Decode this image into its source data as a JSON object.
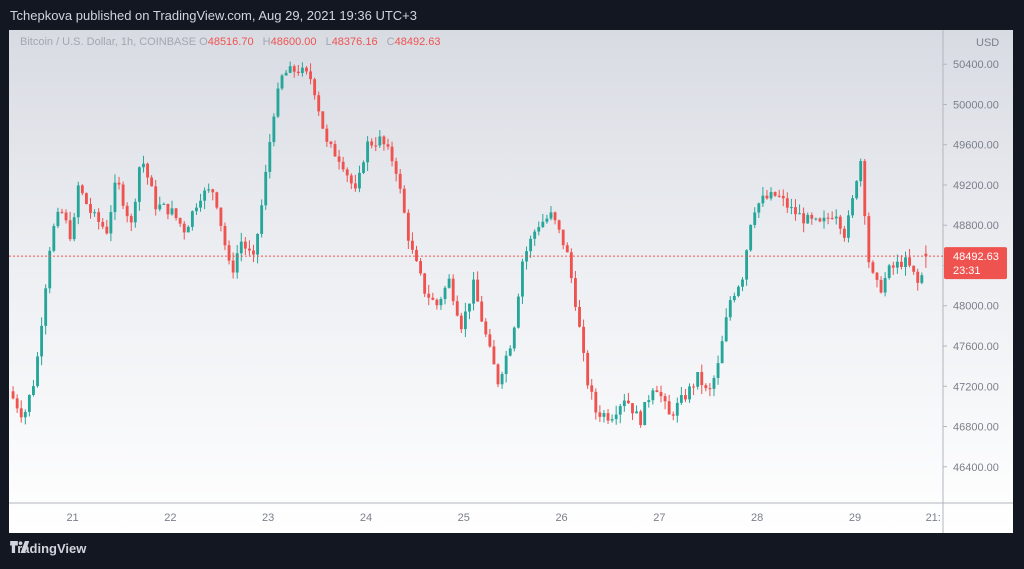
{
  "header": {
    "title": "Tchepkova published on TradingView.com, Aug 29, 2021 19:36 UTC+3"
  },
  "legend": {
    "symbol": "Bitcoin / U.S. Dollar, 1h, COINBASE",
    "o_label": "O",
    "o": "48516.70",
    "h_label": "H",
    "h": "48600.00",
    "l_label": "L",
    "l": "48376.16",
    "c_label": "C",
    "c": "48492.63"
  },
  "footer": {
    "brand": "TradingView"
  },
  "colors": {
    "up": "#26a69a",
    "down": "#ef5350",
    "axis_text": "#7b7f8a",
    "frame_border": "#b2b5be"
  },
  "chart_data": {
    "type": "candlestick",
    "symbol": "Bitcoin / U.S. Dollar, 1h, COINBASE",
    "currency_label": "USD",
    "ylim": [
      46040,
      50740
    ],
    "y_ticks": [
      "50400.00",
      "50000.00",
      "49600.00",
      "49200.00",
      "48800.00",
      "48400.00",
      "48000.00",
      "47600.00",
      "47200.00",
      "46800.00",
      "46400.00"
    ],
    "x_ticks": [
      "21",
      "22",
      "23",
      "24",
      "25",
      "26",
      "27",
      "28",
      "29",
      "21:"
    ],
    "x_tick_day_index": [
      1,
      2,
      3,
      4,
      5,
      6,
      7,
      8,
      9,
      9.8
    ],
    "x_range_days": [
      0.35,
      9.9
    ],
    "last_price": "48492.63",
    "countdown": "23:31",
    "keypoints": [
      [
        0.35,
        47150
      ],
      [
        0.5,
        46900
      ],
      [
        0.62,
        47300
      ],
      [
        0.7,
        48000
      ],
      [
        0.78,
        48700
      ],
      [
        0.88,
        48950
      ],
      [
        1.0,
        48650
      ],
      [
        1.05,
        49200
      ],
      [
        1.2,
        48900
      ],
      [
        1.35,
        48750
      ],
      [
        1.45,
        49250
      ],
      [
        1.6,
        48800
      ],
      [
        1.7,
        49500
      ],
      [
        1.85,
        49000
      ],
      [
        2.0,
        48950
      ],
      [
        2.15,
        48750
      ],
      [
        2.3,
        49100
      ],
      [
        2.45,
        49150
      ],
      [
        2.55,
        48650
      ],
      [
        2.62,
        48300
      ],
      [
        2.72,
        48650
      ],
      [
        2.85,
        48450
      ],
      [
        2.95,
        49100
      ],
      [
        3.05,
        49900
      ],
      [
        3.15,
        50300
      ],
      [
        3.3,
        50350
      ],
      [
        3.45,
        50250
      ],
      [
        3.6,
        49600
      ],
      [
        3.75,
        49450
      ],
      [
        3.9,
        49100
      ],
      [
        4.0,
        49600
      ],
      [
        4.15,
        49650
      ],
      [
        4.3,
        49400
      ],
      [
        4.45,
        48600
      ],
      [
        4.6,
        48150
      ],
      [
        4.72,
        48000
      ],
      [
        4.85,
        48250
      ],
      [
        4.98,
        47800
      ],
      [
        5.1,
        48200
      ],
      [
        5.25,
        47600
      ],
      [
        5.35,
        47250
      ],
      [
        5.5,
        47700
      ],
      [
        5.6,
        48450
      ],
      [
        5.75,
        48800
      ],
      [
        5.9,
        48900
      ],
      [
        6.05,
        48550
      ],
      [
        6.15,
        48000
      ],
      [
        6.25,
        47300
      ],
      [
        6.35,
        46950
      ],
      [
        6.5,
        46900
      ],
      [
        6.65,
        47100
      ],
      [
        6.8,
        46850
      ],
      [
        6.95,
        47250
      ],
      [
        7.1,
        46900
      ],
      [
        7.3,
        47150
      ],
      [
        7.4,
        47300
      ],
      [
        7.5,
        47100
      ],
      [
        7.6,
        47400
      ],
      [
        7.72,
        48050
      ],
      [
        7.85,
        48300
      ],
      [
        7.95,
        48950
      ],
      [
        8.05,
        49050
      ],
      [
        8.2,
        49100
      ],
      [
        8.35,
        48950
      ],
      [
        8.5,
        48850
      ],
      [
        8.65,
        48800
      ],
      [
        8.8,
        48950
      ],
      [
        8.9,
        48700
      ],
      [
        9.0,
        49150
      ],
      [
        9.05,
        49550
      ],
      [
        9.15,
        48350
      ],
      [
        9.25,
        48150
      ],
      [
        9.35,
        48350
      ],
      [
        9.5,
        48450
      ],
      [
        9.58,
        48350
      ],
      [
        9.65,
        48200
      ],
      [
        9.72,
        48400
      ],
      [
        9.75,
        48493
      ]
    ]
  }
}
